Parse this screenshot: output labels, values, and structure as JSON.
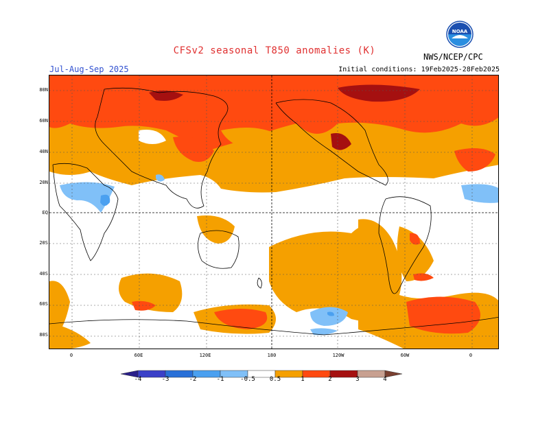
{
  "header": {
    "title": "CFSv2 seasonal T850 anomalies (K)",
    "season": "Jul-Aug-Sep 2025",
    "initial_conditions": "Initial conditions: 19Feb2025-28Feb2025",
    "org": "NWS/NCEP/CPC",
    "logo_text": "NOAA"
  },
  "axes": {
    "lat_labels": [
      "80N",
      "60N",
      "40N",
      "20N",
      "EQ",
      "20S",
      "40S",
      "60S",
      "80S"
    ],
    "lon_labels": [
      "0",
      "60E",
      "120E",
      "180",
      "120W",
      "60W",
      "0"
    ]
  },
  "colorbar": {
    "labels": [
      "-4",
      "-3",
      "-2",
      "-1",
      "-0.5",
      "0.5",
      "1",
      "2",
      "3",
      "4"
    ],
    "colors": [
      "#2a1f8a",
      "#3a40c8",
      "#2870d8",
      "#4aa0f0",
      "#80c0f8",
      "#ffffff",
      "#f5a000",
      "#ff4a10",
      "#a51010",
      "#c8a090",
      "#7a4030"
    ]
  },
  "colors": {
    "map_orange": "#f5a000",
    "map_red": "#ff4a10",
    "map_darkred": "#a51010",
    "map_blue": "#80c0f8",
    "map_midblue": "#4aa0f0",
    "title_red": "#e03030",
    "season_blue": "#3050d0"
  }
}
